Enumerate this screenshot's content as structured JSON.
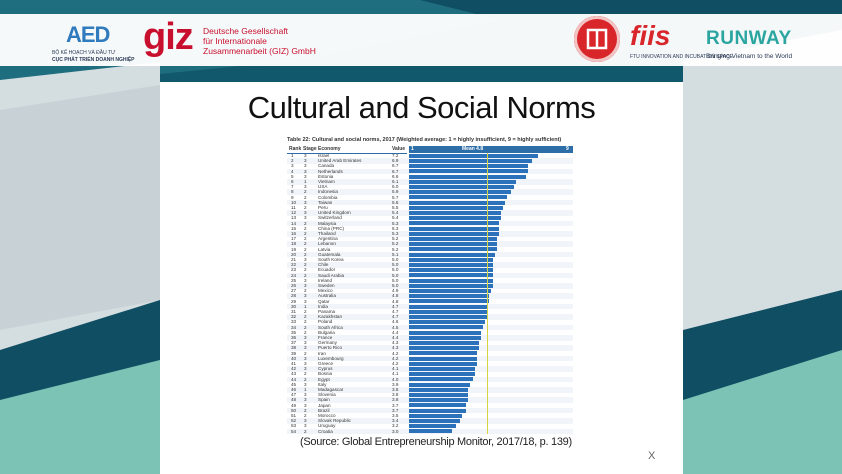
{
  "logos": {
    "aed": {
      "mark": "AED",
      "line1": "BỘ KẾ HOẠCH VÀ ĐẦU TƯ",
      "line2": "CỤC PHÁT TRIỂN DOANH NGHIỆP"
    },
    "giz": {
      "mark": "giz",
      "line1": "Deutsche Gesellschaft",
      "line2": "für Internationale",
      "line3": "Zusammenarbeit (GIZ) GmbH"
    },
    "fiis": {
      "mark": "fiis",
      "runway": "RUNWAY",
      "sub": "FTU INNOVATION AND INCUBATION SPACE",
      "tagline": "Bringing Vietnam to the World"
    }
  },
  "slide": {
    "title": "Cultural and Social Norms",
    "source": "(Source: Global Entrepreneurship Monitor, 2017/18, p. 139)",
    "close_label": "X"
  },
  "table": {
    "caption": "Table 22: Cultural and social norms, 2017 (Weighted average: 1 = highly insufficient, 9 = highly sufficient)",
    "headers": {
      "rank": "Rank",
      "stage": "Stage",
      "economy": "Economy",
      "value": "Value",
      "mean": "Mean 4.8",
      "axis_min": "1",
      "axis_max": "9"
    }
  },
  "chart_data": {
    "type": "bar",
    "title": "Cultural and social norms, 2017",
    "xlim": [
      1,
      9
    ],
    "mean": 4.8,
    "rows": [
      {
        "rank": "1",
        "stage": "3",
        "economy": "Israel",
        "value": 7.2
      },
      {
        "rank": "2",
        "stage": "3",
        "economy": "United Arab Emirates",
        "value": 6.9
      },
      {
        "rank": "3",
        "stage": "3",
        "economy": "Canada",
        "value": 6.7
      },
      {
        "rank": "4",
        "stage": "3",
        "economy": "Netherlands",
        "value": 6.7
      },
      {
        "rank": "5",
        "stage": "3",
        "economy": "Estonia",
        "value": 6.6
      },
      {
        "rank": "6",
        "stage": "1",
        "economy": "Vietnam",
        "value": 6.1
      },
      {
        "rank": "7",
        "stage": "3",
        "economy": "USA",
        "value": 6.0
      },
      {
        "rank": "8",
        "stage": "2",
        "economy": "Indonesia",
        "value": 5.9
      },
      {
        "rank": "9",
        "stage": "2",
        "economy": "Colombia",
        "value": 5.7
      },
      {
        "rank": "10",
        "stage": "3",
        "economy": "Taiwan",
        "value": 5.6
      },
      {
        "rank": "11",
        "stage": "2",
        "economy": "Peru",
        "value": 5.5
      },
      {
        "rank": "12",
        "stage": "3",
        "economy": "United Kingdom",
        "value": 5.4
      },
      {
        "rank": "13",
        "stage": "3",
        "economy": "Switzerland",
        "value": 5.4
      },
      {
        "rank": "14",
        "stage": "2",
        "economy": "Malaysia",
        "value": 5.3
      },
      {
        "rank": "15",
        "stage": "2",
        "economy": "China (PRC)",
        "value": 5.3
      },
      {
        "rank": "16",
        "stage": "2",
        "economy": "Thailand",
        "value": 5.3
      },
      {
        "rank": "17",
        "stage": "2",
        "economy": "Argentina",
        "value": 5.2
      },
      {
        "rank": "18",
        "stage": "2",
        "economy": "Lebanon",
        "value": 5.2
      },
      {
        "rank": "19",
        "stage": "2",
        "economy": "Latvia",
        "value": 5.2
      },
      {
        "rank": "20",
        "stage": "2",
        "economy": "Guatemala",
        "value": 5.1
      },
      {
        "rank": "21",
        "stage": "3",
        "economy": "South Korea",
        "value": 5.0
      },
      {
        "rank": "22",
        "stage": "2",
        "economy": "Chile",
        "value": 5.0
      },
      {
        "rank": "23",
        "stage": "2",
        "economy": "Ecuador",
        "value": 5.0
      },
      {
        "rank": "24",
        "stage": "2",
        "economy": "Saudi Arabia",
        "value": 5.0
      },
      {
        "rank": "25",
        "stage": "3",
        "economy": "Ireland",
        "value": 5.0
      },
      {
        "rank": "26",
        "stage": "3",
        "economy": "Sweden",
        "value": 5.0
      },
      {
        "rank": "27",
        "stage": "2",
        "economy": "Mexico",
        "value": 4.9
      },
      {
        "rank": "28",
        "stage": "3",
        "economy": "Australia",
        "value": 4.8
      },
      {
        "rank": "29",
        "stage": "3",
        "economy": "Qatar",
        "value": 4.8
      },
      {
        "rank": "30",
        "stage": "1",
        "economy": "India",
        "value": 4.7
      },
      {
        "rank": "31",
        "stage": "2",
        "economy": "Panama",
        "value": 4.7
      },
      {
        "rank": "32",
        "stage": "2",
        "economy": "Kazakhstan",
        "value": 4.7
      },
      {
        "rank": "33",
        "stage": "2",
        "economy": "Poland",
        "value": 4.6
      },
      {
        "rank": "34",
        "stage": "2",
        "economy": "South Africa",
        "value": 4.5
      },
      {
        "rank": "35",
        "stage": "2",
        "economy": "Bulgaria",
        "value": 4.4
      },
      {
        "rank": "36",
        "stage": "3",
        "economy": "France",
        "value": 4.4
      },
      {
        "rank": "37",
        "stage": "3",
        "economy": "Germany",
        "value": 4.3
      },
      {
        "rank": "38",
        "stage": "3",
        "economy": "Puerto Rico",
        "value": 4.3
      },
      {
        "rank": "39",
        "stage": "2",
        "economy": "Iran",
        "value": 4.2
      },
      {
        "rank": "40",
        "stage": "3",
        "economy": "Luxembourg",
        "value": 4.2
      },
      {
        "rank": "41",
        "stage": "3",
        "economy": "Greece",
        "value": 4.2
      },
      {
        "rank": "42",
        "stage": "3",
        "economy": "Cyprus",
        "value": 4.1
      },
      {
        "rank": "43",
        "stage": "2",
        "economy": "Bosnia",
        "value": 4.1
      },
      {
        "rank": "44",
        "stage": "2",
        "economy": "Egypt",
        "value": 4.0
      },
      {
        "rank": "45",
        "stage": "3",
        "economy": "Italy",
        "value": 3.9
      },
      {
        "rank": "46",
        "stage": "1",
        "economy": "Madagascar",
        "value": 3.8
      },
      {
        "rank": "47",
        "stage": "3",
        "economy": "Slovenia",
        "value": 3.8
      },
      {
        "rank": "48",
        "stage": "3",
        "economy": "Spain",
        "value": 3.8
      },
      {
        "rank": "49",
        "stage": "3",
        "economy": "Japan",
        "value": 3.7
      },
      {
        "rank": "50",
        "stage": "2",
        "economy": "Brazil",
        "value": 3.7
      },
      {
        "rank": "51",
        "stage": "2",
        "economy": "Morocco",
        "value": 3.5
      },
      {
        "rank": "52",
        "stage": "3",
        "economy": "Slovak Republic",
        "value": 3.4
      },
      {
        "rank": "53",
        "stage": "3",
        "economy": "Uruguay",
        "value": 3.2
      },
      {
        "rank": "54",
        "stage": "2",
        "economy": "Croatia",
        "value": 3.0
      }
    ]
  }
}
